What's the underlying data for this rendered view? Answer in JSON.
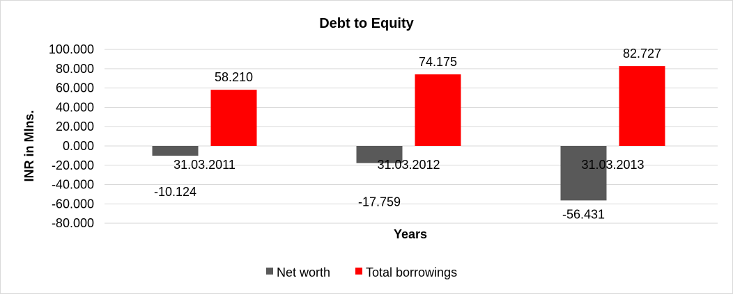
{
  "chart_data": {
    "type": "bar",
    "title": "Debt to Equity",
    "xlabel": "Years",
    "ylabel": "INR in Mlns.",
    "categories": [
      "31.03.2011",
      "31.03.2012",
      "31.03.2013"
    ],
    "series": [
      {
        "name": "Net worth",
        "values": [
          -10.124,
          -17.759,
          -56.431
        ],
        "labels": [
          "-10.124",
          "-17.759",
          "-56.431"
        ],
        "color": "#595959"
      },
      {
        "name": "Total borrowings",
        "values": [
          58.21,
          74.175,
          82.727
        ],
        "labels": [
          "58.210",
          "74.175",
          "82.727"
        ],
        "color": "#FF0000"
      }
    ],
    "ylim": [
      -80,
      100
    ],
    "yticks": [
      100,
      80,
      60,
      40,
      20,
      0,
      -20,
      -40,
      -60,
      -80
    ],
    "ytick_labels": [
      "100.000",
      "80.000",
      "60.000",
      "40.000",
      "20.000",
      "0.000",
      "-20.000",
      "-40.000",
      "-60.000",
      "-80.000"
    ],
    "grid": true,
    "legend": "bottom"
  }
}
